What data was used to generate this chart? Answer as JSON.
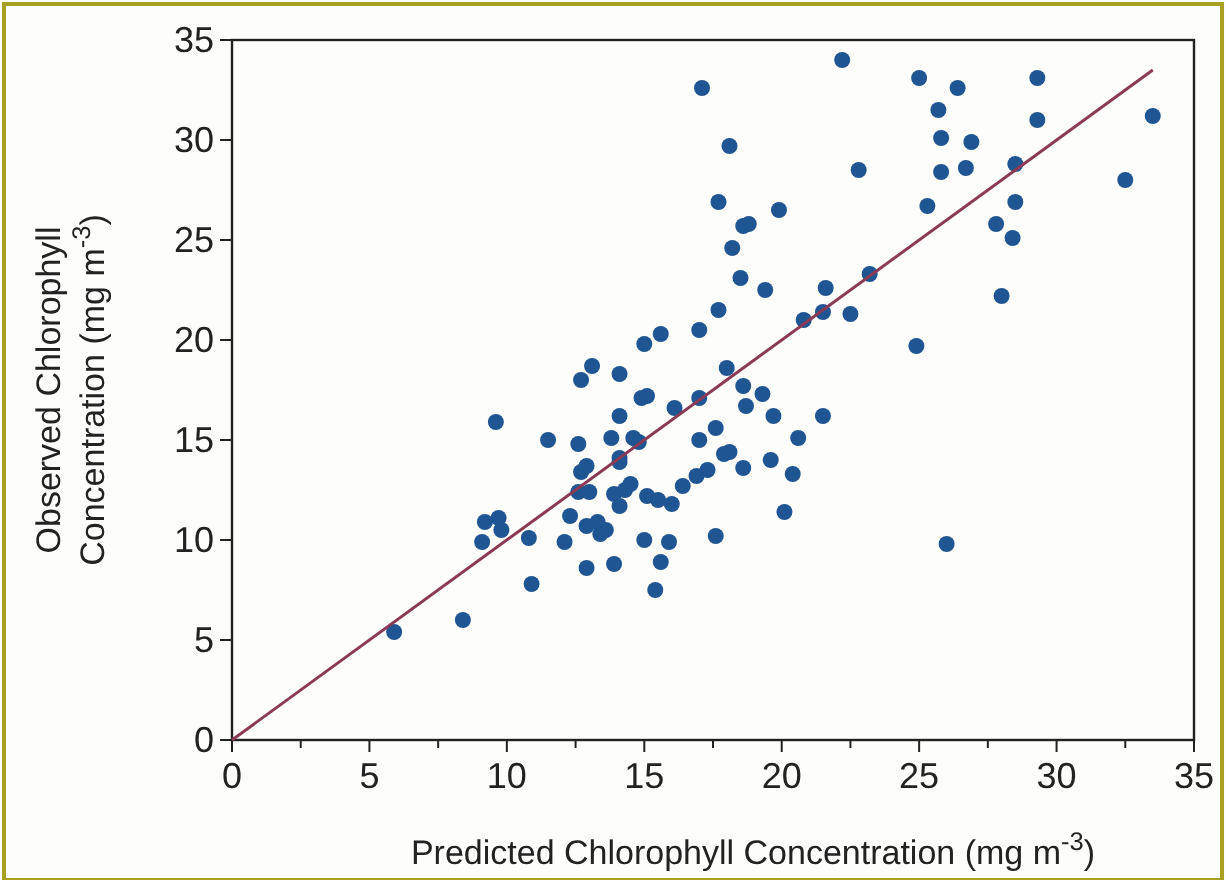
{
  "chart_data": {
    "type": "scatter",
    "xlabel": "Predicted Chlorophyll Concentration (mg m$^{-3}$)",
    "ylabel": "Observed Chlorophyll\nConcentration (mg m$^{-3}$)",
    "xlim": [
      0,
      35
    ],
    "ylim": [
      0,
      35
    ],
    "xticks": [
      0,
      {
        "value": 2.5,
        "label": null
      },
      5,
      {
        "value": 7.5,
        "label": null
      },
      10,
      {
        "value": 12.5,
        "label": null
      },
      15,
      {
        "value": 17.5,
        "label": null
      },
      20,
      {
        "value": 22.5,
        "label": null
      },
      25,
      {
        "value": 27.5,
        "label": null
      },
      30,
      {
        "value": 32.5,
        "label": null
      },
      35
    ],
    "yticks": [
      0,
      5,
      10,
      15,
      20,
      25,
      30,
      35
    ],
    "grid": false,
    "marker": "circle",
    "series": [
      {
        "color": "#1f5592",
        "x": [
          5.9,
          8.4,
          9.1,
          9.2,
          9.7,
          9.8,
          9.6,
          10.8,
          10.9,
          11.5,
          12.1,
          12.3,
          12.6,
          12.6,
          12.7,
          12.7,
          12.9,
          12.9,
          12.9,
          13.0,
          13.1,
          13.3,
          13.6,
          13.4,
          13.9,
          14.1,
          14.1,
          13.8,
          13.9,
          14.1,
          14.1,
          14.1,
          14.3,
          14.5,
          14.6,
          14.8,
          14.9,
          15.1,
          15.0,
          15.0,
          15.1,
          15.4,
          15.5,
          15.6,
          15.6,
          15.9,
          16.0,
          16.1,
          16.4,
          16.9,
          17.0,
          17.0,
          17.0,
          17.1,
          17.3,
          17.6,
          17.6,
          17.7,
          17.7,
          17.9,
          18.0,
          18.1,
          18.1,
          18.2,
          18.5,
          18.6,
          18.6,
          18.6,
          18.8,
          18.7,
          19.3,
          19.4,
          19.6,
          19.7,
          19.9,
          20.1,
          20.4,
          20.6,
          20.8,
          21.5,
          21.6,
          21.5,
          22.2,
          22.5,
          22.8,
          23.2,
          24.9,
          25.0,
          25.3,
          25.7,
          25.8,
          25.8,
          26.0,
          26.4,
          26.7,
          26.9,
          27.8,
          28.0,
          28.4,
          28.5,
          28.5,
          29.3,
          29.3,
          32.5,
          33.5
        ],
        "values": [
          5.4,
          6.0,
          9.9,
          10.9,
          11.1,
          10.5,
          15.9,
          10.1,
          7.8,
          15.0,
          9.9,
          11.2,
          14.8,
          12.4,
          18.0,
          13.4,
          13.7,
          10.7,
          8.6,
          12.4,
          18.7,
          10.9,
          10.5,
          10.3,
          8.8,
          18.3,
          16.2,
          15.1,
          12.3,
          11.7,
          14.1,
          13.9,
          12.5,
          12.8,
          15.1,
          14.9,
          17.1,
          17.2,
          10.0,
          19.8,
          12.2,
          7.5,
          12.0,
          8.9,
          20.3,
          9.9,
          11.8,
          16.6,
          12.7,
          13.2,
          15.0,
          17.1,
          20.5,
          32.6,
          13.5,
          15.6,
          10.2,
          21.5,
          26.9,
          14.3,
          18.6,
          29.7,
          14.4,
          24.6,
          23.1,
          25.7,
          17.7,
          13.6,
          25.8,
          16.7,
          17.3,
          22.5,
          14.0,
          16.2,
          26.5,
          11.4,
          13.3,
          15.1,
          21.0,
          21.4,
          22.6,
          16.2,
          34.0,
          21.3,
          28.5,
          23.3,
          19.7,
          33.1,
          26.7,
          31.5,
          30.1,
          28.4,
          9.8,
          32.6,
          28.6,
          29.9,
          25.8,
          22.2,
          25.1,
          26.9,
          28.8,
          33.1,
          31.0,
          28.0,
          31.2
        ]
      },
      {
        "type": "line",
        "color": "#8b3a55",
        "line_style": "solid",
        "marker": "none",
        "x": [
          0,
          33.5
        ],
        "values": [
          0,
          33.5
        ]
      }
    ]
  }
}
